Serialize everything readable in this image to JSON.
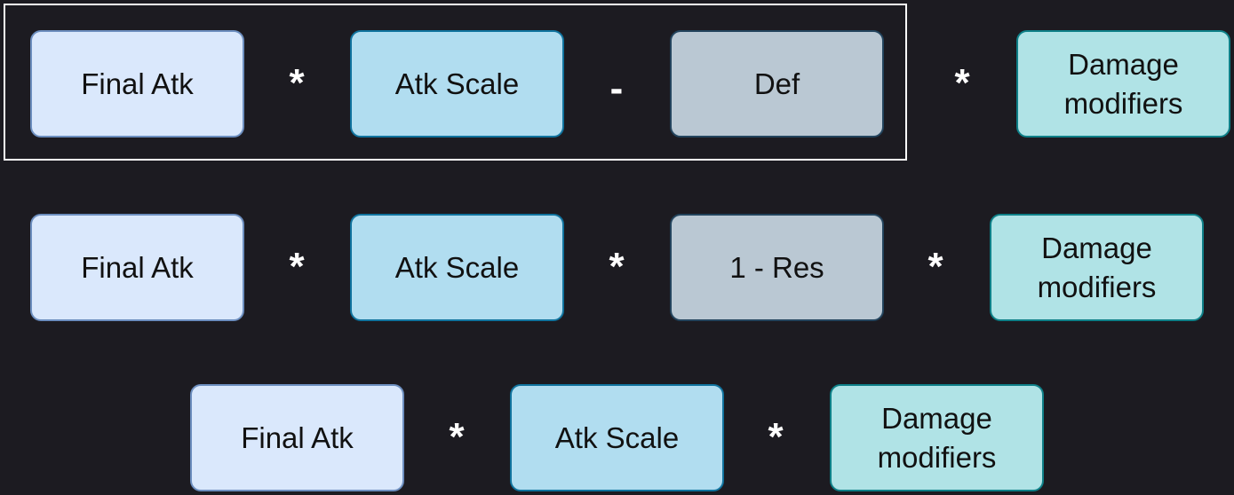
{
  "rows": [
    {
      "items": [
        {
          "type": "box",
          "style": "atk",
          "text": "Final Atk"
        },
        {
          "type": "op",
          "text": "*"
        },
        {
          "type": "box",
          "style": "scale",
          "text": "Atk Scale"
        },
        {
          "type": "op",
          "text": "-"
        },
        {
          "type": "box",
          "style": "gray",
          "text": "Def"
        },
        {
          "type": "op",
          "text": "*"
        },
        {
          "type": "box",
          "style": "mod",
          "text": "Damage modifiers"
        }
      ]
    },
    {
      "items": [
        {
          "type": "box",
          "style": "atk",
          "text": "Final Atk"
        },
        {
          "type": "op",
          "text": "*"
        },
        {
          "type": "box",
          "style": "scale",
          "text": "Atk Scale"
        },
        {
          "type": "op",
          "text": "*"
        },
        {
          "type": "box",
          "style": "gray",
          "text": "1 - Res"
        },
        {
          "type": "op",
          "text": "*"
        },
        {
          "type": "box",
          "style": "mod",
          "text": "Damage modifiers"
        }
      ]
    },
    {
      "items": [
        {
          "type": "box",
          "style": "atk",
          "text": "Final Atk"
        },
        {
          "type": "op",
          "text": "*"
        },
        {
          "type": "box",
          "style": "scale",
          "text": "Atk Scale"
        },
        {
          "type": "op",
          "text": "*"
        },
        {
          "type": "box",
          "style": "mod",
          "text": "Damage modifiers"
        }
      ]
    }
  ],
  "colors": {
    "background": "#1c1b21",
    "operator": "#ffffff",
    "atk_fill": "#dae8fc",
    "scale_fill": "#b1ddf0",
    "gray_fill": "#bac8d3",
    "mod_fill": "#b0e3e6"
  }
}
